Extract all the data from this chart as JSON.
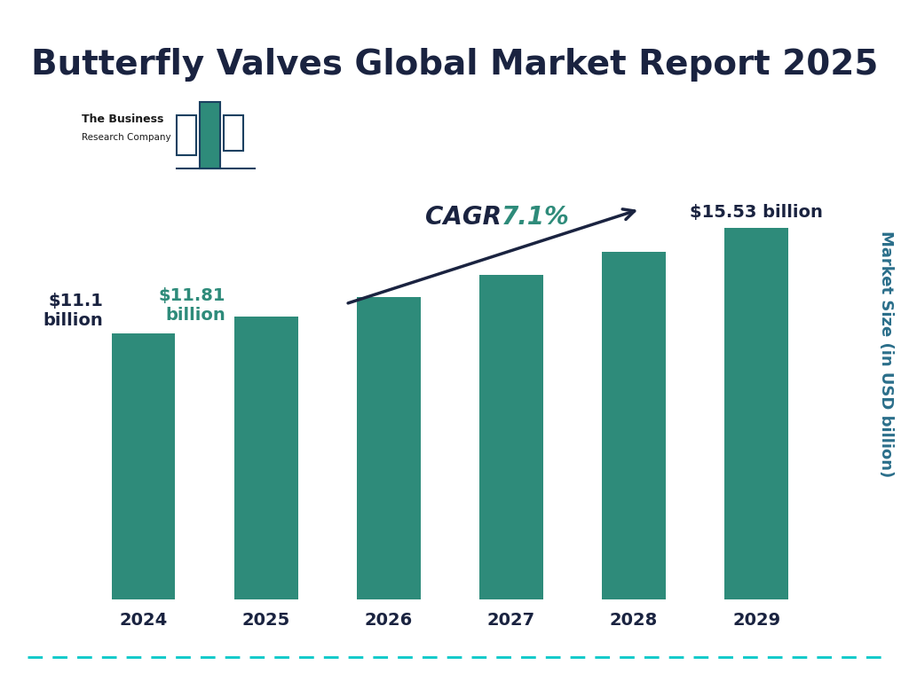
{
  "title": "Butterfly Valves Global Market Report 2025",
  "years": [
    "2024",
    "2025",
    "2026",
    "2027",
    "2028",
    "2029"
  ],
  "values": [
    11.1,
    11.81,
    12.65,
    13.55,
    14.51,
    15.53
  ],
  "bar_color": "#2e8b7a",
  "background_color": "#ffffff",
  "title_color": "#1a2340",
  "ylabel": "Market Size (in USD billion)",
  "ylabel_color": "#2a6e8a",
  "label_2024": "$11.1\nbillion",
  "label_2025": "$11.81\nbillion",
  "label_2029": "$15.53 billion",
  "label_2024_color": "#1a2340",
  "label_2025_color": "#2e8b7a",
  "label_2029_color": "#1a2340",
  "cagr_prefix": "CAGR ",
  "cagr_value": "7.1%",
  "cagr_prefix_color": "#1a2340",
  "cagr_value_color": "#2e8b7a",
  "arrow_color": "#1a2340",
  "tick_color": "#1a2340",
  "dashed_line_color": "#00c8c8",
  "logo_outline_color": "#1a4060",
  "logo_bar_color": "#2e8b7a",
  "title_fontsize": 28,
  "tick_fontsize": 14,
  "label_fontsize": 14,
  "ylabel_fontsize": 13,
  "cagr_fontsize": 20
}
